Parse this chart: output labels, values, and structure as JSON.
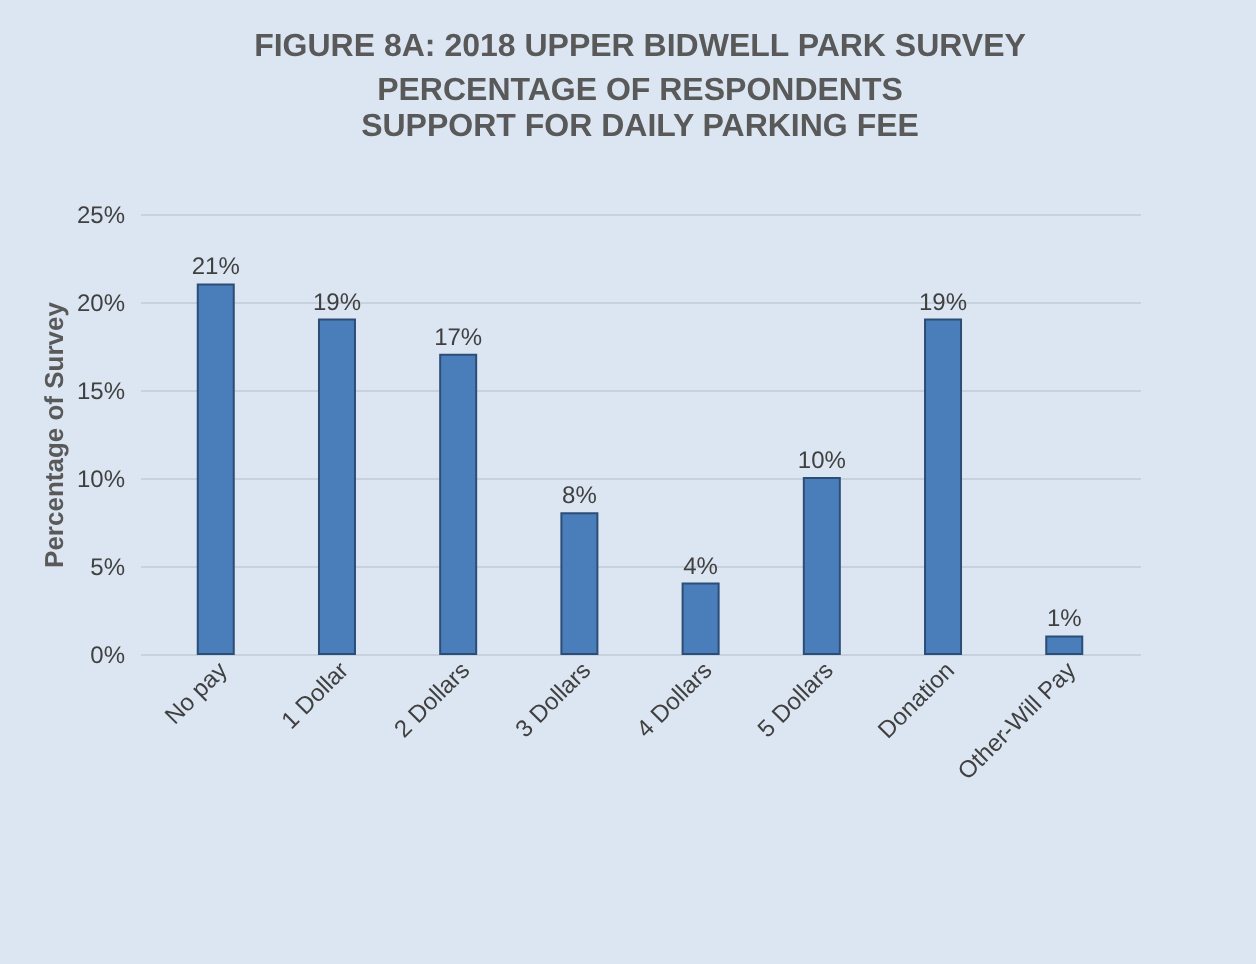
{
  "chart_data": {
    "type": "bar",
    "title": "FIGURE 8A: 2018 UPPER BIDWELL PARK SURVEY",
    "subtitle": "PERCENTAGE OF RESPONDENTS\nSUPPORT FOR DAILY PARKING FEE",
    "ylabel": "Percentage of Survey",
    "categories": [
      "No pay",
      "1 Dollar",
      "2 Dollars",
      "3 Dollars",
      "4 Dollars",
      "5 Dollars",
      "Donation",
      "Other-Will Pay"
    ],
    "values": [
      21,
      19,
      17,
      8,
      4,
      10,
      19,
      1
    ],
    "value_labels": [
      "21%",
      "19%",
      "17%",
      "8%",
      "4%",
      "10%",
      "19%",
      "1%"
    ],
    "color": "#4a7ebb",
    "ylim": [
      0,
      25
    ],
    "yticks": [
      {
        "value": 0,
        "label": "0%"
      },
      {
        "value": 5,
        "label": "5%"
      },
      {
        "value": 10,
        "label": "10%"
      },
      {
        "value": 15,
        "label": "15%"
      },
      {
        "value": 20,
        "label": "20%"
      },
      {
        "value": 25,
        "label": "25%"
      }
    ],
    "grid": "y"
  }
}
